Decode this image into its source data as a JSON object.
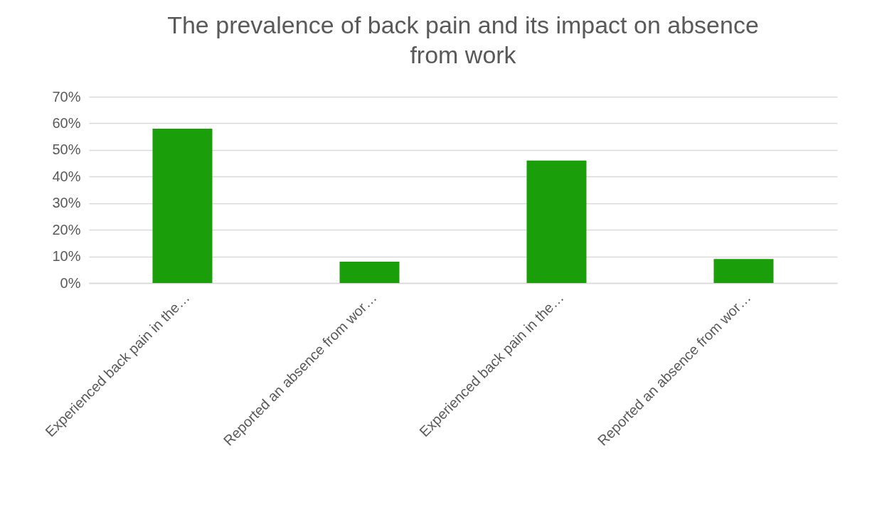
{
  "chart_data": {
    "type": "bar",
    "title": "The prevalence of back pain and its impact on absence from work",
    "categories": [
      "Experienced back pain in the…",
      "Reported an absence from wor…",
      "Experienced back pain in the…",
      "Reported an absence from wor…"
    ],
    "values": [
      58,
      8,
      46,
      9
    ],
    "color": "#1a9e0a",
    "ylim": [
      0,
      70
    ],
    "yticks": [
      {
        "value": 0,
        "label": "0%"
      },
      {
        "value": 10,
        "label": "10%"
      },
      {
        "value": 20,
        "label": "20%"
      },
      {
        "value": 30,
        "label": "30%"
      },
      {
        "value": 40,
        "label": "40%"
      },
      {
        "value": 50,
        "label": "50%"
      },
      {
        "value": 60,
        "label": "60%"
      },
      {
        "value": 70,
        "label": "70%"
      }
    ],
    "grid": "y"
  }
}
